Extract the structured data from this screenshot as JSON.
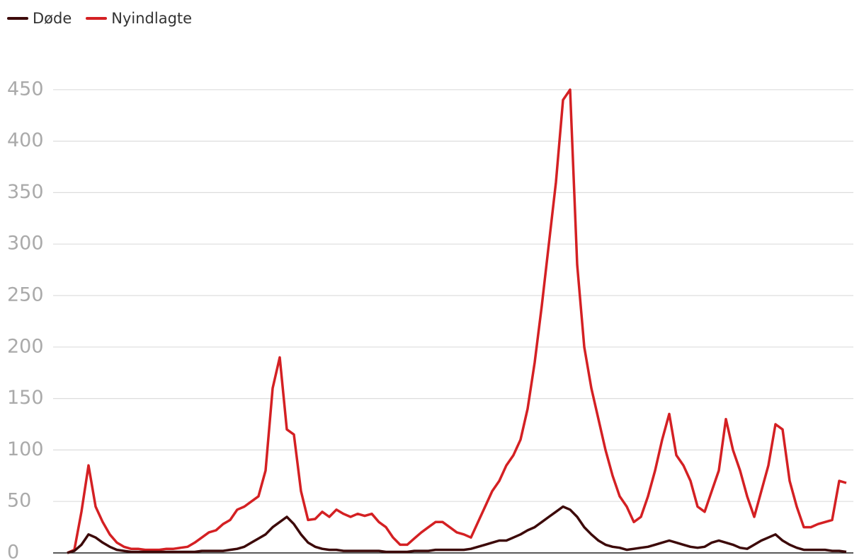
{
  "chart_data": {
    "type": "line",
    "ylim": [
      0,
      500
    ],
    "yticks": [
      0,
      50,
      100,
      150,
      200,
      250,
      300,
      350,
      400,
      450
    ],
    "grid": true,
    "series": [
      {
        "name": "Døde",
        "color": "#3d0a0a",
        "values": [
          0,
          2,
          8,
          18,
          15,
          10,
          6,
          3,
          2,
          1,
          1,
          1,
          1,
          1,
          1,
          1,
          1,
          1,
          1,
          2,
          2,
          2,
          2,
          3,
          4,
          6,
          10,
          14,
          18,
          25,
          30,
          35,
          28,
          18,
          10,
          6,
          4,
          3,
          3,
          2,
          2,
          2,
          2,
          2,
          2,
          1,
          1,
          1,
          1,
          2,
          2,
          2,
          3,
          3,
          3,
          3,
          3,
          4,
          6,
          8,
          10,
          12,
          12,
          15,
          18,
          22,
          25,
          30,
          35,
          40,
          45,
          42,
          35,
          25,
          18,
          12,
          8,
          6,
          5,
          3,
          4,
          5,
          6,
          8,
          10,
          12,
          10,
          8,
          6,
          5,
          6,
          10,
          12,
          10,
          8,
          5,
          4,
          8,
          12,
          15,
          18,
          12,
          8,
          5,
          3,
          3,
          3,
          3,
          2,
          2,
          1
        ]
      },
      {
        "name": "Nyindlagte",
        "color": "#d42023",
        "values": [
          0,
          3,
          40,
          85,
          45,
          30,
          18,
          10,
          6,
          4,
          4,
          3,
          3,
          3,
          4,
          4,
          5,
          6,
          10,
          15,
          20,
          22,
          28,
          32,
          42,
          45,
          50,
          55,
          80,
          160,
          190,
          120,
          115,
          60,
          32,
          33,
          40,
          35,
          42,
          38,
          35,
          38,
          36,
          38,
          30,
          25,
          15,
          8,
          8,
          14,
          20,
          25,
          30,
          30,
          25,
          20,
          18,
          15,
          30,
          45,
          60,
          70,
          85,
          95,
          110,
          140,
          185,
          240,
          300,
          360,
          440,
          450,
          280,
          200,
          160,
          130,
          100,
          75,
          55,
          45,
          30,
          35,
          55,
          80,
          110,
          135,
          95,
          85,
          70,
          45,
          40,
          60,
          80,
          130,
          100,
          80,
          55,
          35,
          60,
          85,
          125,
          120,
          70,
          45,
          25,
          25,
          28,
          30,
          32,
          70,
          68
        ]
      }
    ]
  }
}
